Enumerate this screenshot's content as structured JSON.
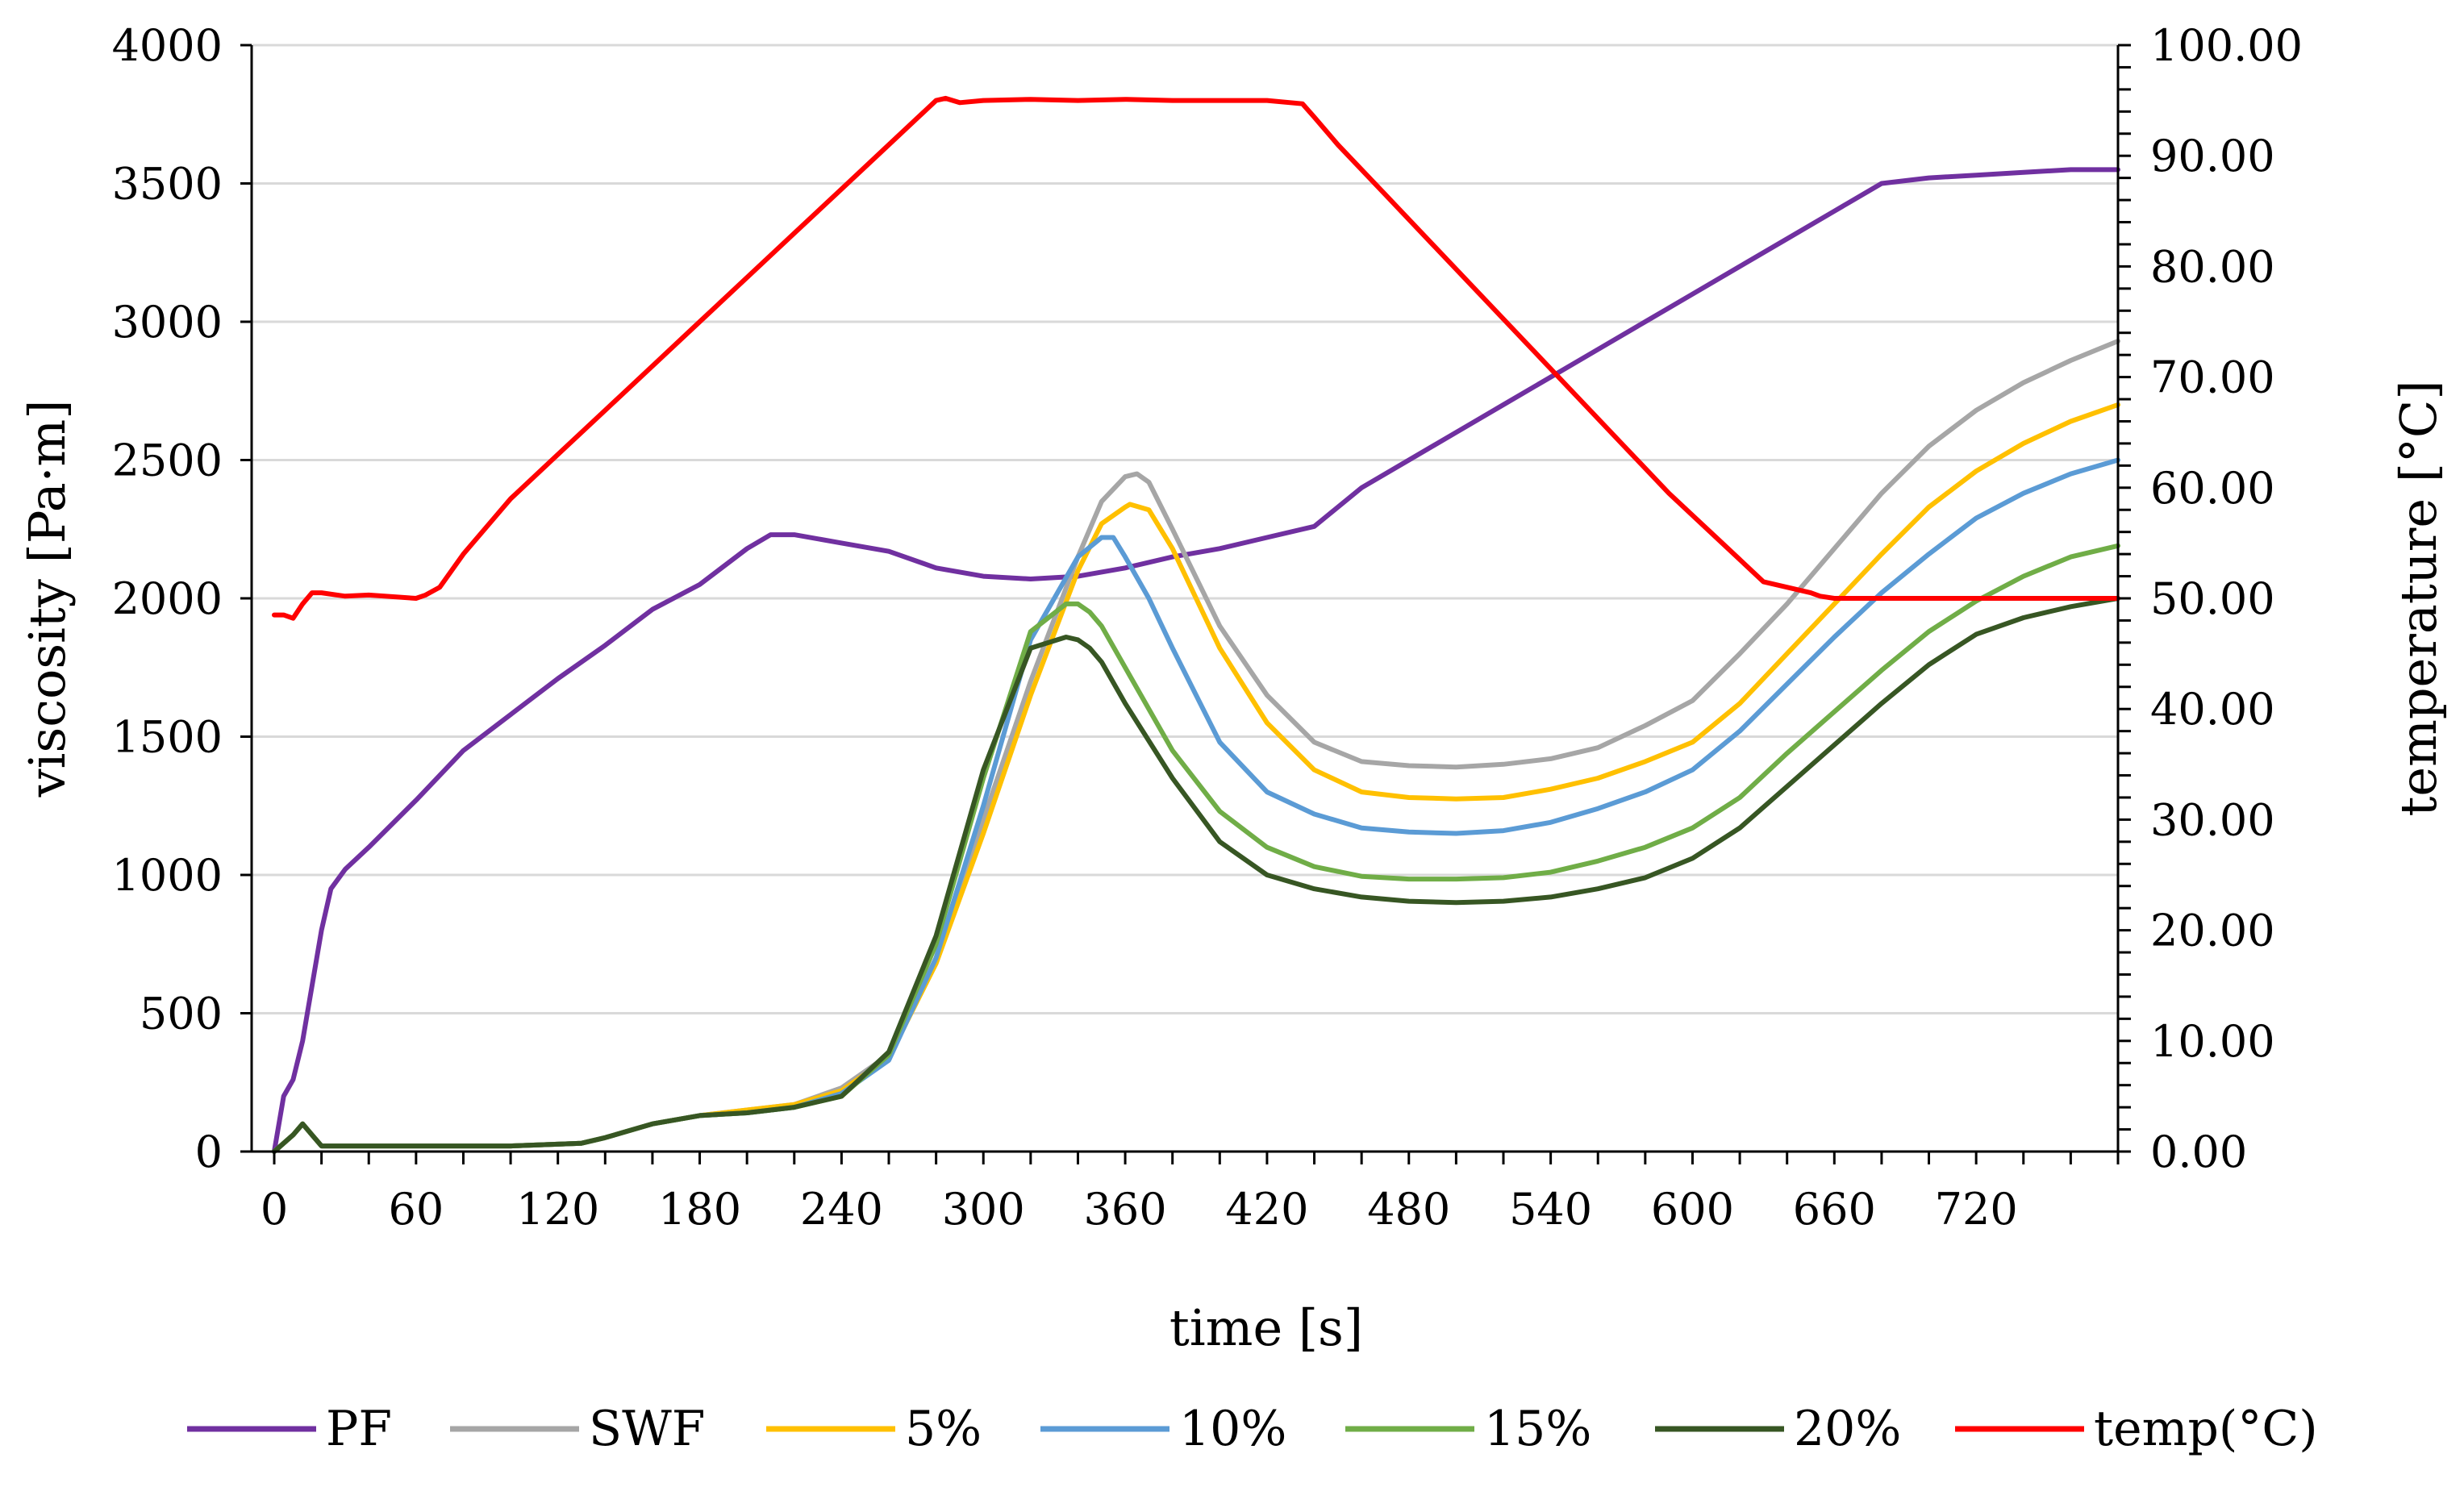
{
  "chart_data": {
    "type": "line",
    "xlabel": "time [s]",
    "ylabel": "viscosity [Pa·m]",
    "y2label": "temperature [°C]",
    "xlim": [
      0,
      780
    ],
    "ylim": [
      0,
      4000
    ],
    "y2lim": [
      0,
      100
    ],
    "x_ticks": [
      0,
      60,
      120,
      180,
      240,
      300,
      360,
      420,
      480,
      540,
      600,
      660,
      720
    ],
    "y_ticks": [
      0,
      500,
      1000,
      1500,
      2000,
      2500,
      3000,
      3500,
      4000
    ],
    "y2_ticks": [
      "0.00",
      "10.00",
      "20.00",
      "30.00",
      "40.00",
      "50.00",
      "60.00",
      "70.00",
      "80.00",
      "90.00",
      "100.00"
    ],
    "grid": "horizontal",
    "legend_position": "bottom",
    "series": [
      {
        "name": "PF",
        "color": "#7030a0",
        "axis": "left",
        "x": [
          0,
          4,
          8,
          12,
          16,
          20,
          24,
          30,
          40,
          60,
          80,
          100,
          120,
          140,
          160,
          180,
          200,
          210,
          220,
          240,
          260,
          280,
          300,
          320,
          340,
          360,
          380,
          400,
          420,
          440,
          460,
          480,
          500,
          520,
          540,
          560,
          580,
          600,
          620,
          640,
          660,
          680,
          700,
          720,
          740,
          760,
          780
        ],
        "y": [
          0,
          200,
          260,
          400,
          600,
          800,
          950,
          1020,
          1100,
          1270,
          1450,
          1580,
          1710,
          1830,
          1960,
          2050,
          2180,
          2230,
          2230,
          2200,
          2170,
          2110,
          2080,
          2070,
          2080,
          2110,
          2150,
          2180,
          2220,
          2260,
          2400,
          2500,
          2600,
          2700,
          2800,
          2900,
          3000,
          3100,
          3200,
          3300,
          3400,
          3500,
          3520,
          3530,
          3540,
          3550,
          3550
        ]
      },
      {
        "name": "SWF",
        "color": "#a6a6a6",
        "axis": "left",
        "x": [
          0,
          8,
          12,
          16,
          20,
          30,
          60,
          100,
          130,
          140,
          160,
          180,
          200,
          220,
          240,
          260,
          280,
          300,
          320,
          340,
          350,
          360,
          365,
          370,
          380,
          400,
          420,
          440,
          460,
          480,
          500,
          520,
          540,
          560,
          580,
          600,
          620,
          640,
          660,
          680,
          700,
          720,
          740,
          760,
          780
        ],
        "y": [
          0,
          60,
          100,
          60,
          20,
          20,
          20,
          20,
          30,
          50,
          100,
          130,
          150,
          170,
          230,
          350,
          700,
          1200,
          1700,
          2150,
          2350,
          2440,
          2450,
          2420,
          2250,
          1900,
          1650,
          1480,
          1410,
          1395,
          1390,
          1400,
          1420,
          1460,
          1540,
          1630,
          1800,
          1980,
          2180,
          2380,
          2550,
          2680,
          2780,
          2860,
          2930
        ]
      },
      {
        "name": "5%",
        "color": "#ffc000",
        "axis": "left",
        "x": [
          0,
          8,
          12,
          16,
          20,
          30,
          60,
          100,
          130,
          140,
          160,
          180,
          200,
          220,
          240,
          260,
          280,
          300,
          320,
          340,
          350,
          360,
          362,
          370,
          380,
          400,
          420,
          440,
          460,
          480,
          500,
          520,
          540,
          560,
          580,
          600,
          620,
          640,
          660,
          680,
          700,
          720,
          740,
          760,
          780
        ],
        "y": [
          0,
          60,
          100,
          60,
          20,
          20,
          20,
          20,
          30,
          50,
          100,
          130,
          150,
          170,
          220,
          340,
          680,
          1150,
          1650,
          2100,
          2270,
          2330,
          2340,
          2320,
          2180,
          1820,
          1550,
          1380,
          1300,
          1280,
          1275,
          1280,
          1310,
          1350,
          1410,
          1480,
          1620,
          1800,
          1980,
          2160,
          2330,
          2460,
          2560,
          2640,
          2700
        ]
      },
      {
        "name": "10%",
        "color": "#5b9bd5",
        "axis": "left",
        "x": [
          0,
          8,
          12,
          16,
          20,
          30,
          60,
          100,
          130,
          140,
          160,
          180,
          200,
          220,
          240,
          260,
          280,
          300,
          320,
          340,
          350,
          355,
          360,
          370,
          380,
          400,
          420,
          440,
          460,
          480,
          500,
          520,
          540,
          560,
          580,
          600,
          620,
          640,
          660,
          680,
          700,
          720,
          740,
          760,
          780
        ],
        "y": [
          0,
          60,
          100,
          60,
          20,
          20,
          20,
          20,
          30,
          50,
          100,
          130,
          140,
          160,
          210,
          330,
          700,
          1250,
          1850,
          2150,
          2220,
          2220,
          2150,
          2000,
          1820,
          1480,
          1300,
          1220,
          1170,
          1155,
          1150,
          1160,
          1190,
          1240,
          1300,
          1380,
          1520,
          1690,
          1860,
          2020,
          2160,
          2290,
          2380,
          2450,
          2500
        ]
      },
      {
        "name": "15%",
        "color": "#70ad47",
        "axis": "left",
        "x": [
          0,
          8,
          12,
          16,
          20,
          30,
          60,
          100,
          130,
          140,
          160,
          180,
          200,
          220,
          240,
          260,
          280,
          300,
          320,
          335,
          340,
          345,
          350,
          360,
          380,
          400,
          420,
          440,
          460,
          480,
          500,
          520,
          540,
          560,
          580,
          600,
          620,
          640,
          660,
          680,
          700,
          720,
          740,
          760,
          780
        ],
        "y": [
          0,
          60,
          100,
          60,
          20,
          20,
          20,
          20,
          30,
          50,
          100,
          130,
          140,
          160,
          200,
          350,
          750,
          1350,
          1880,
          1980,
          1980,
          1950,
          1900,
          1750,
          1450,
          1230,
          1100,
          1030,
          995,
          985,
          985,
          990,
          1010,
          1050,
          1100,
          1170,
          1280,
          1440,
          1590,
          1740,
          1880,
          1990,
          2080,
          2150,
          2190
        ]
      },
      {
        "name": "20%",
        "color": "#375623",
        "axis": "left",
        "x": [
          0,
          8,
          12,
          16,
          20,
          30,
          60,
          100,
          130,
          140,
          160,
          180,
          200,
          220,
          240,
          260,
          280,
          300,
          320,
          335,
          340,
          345,
          350,
          360,
          380,
          400,
          420,
          440,
          460,
          480,
          500,
          520,
          540,
          560,
          580,
          600,
          620,
          640,
          660,
          680,
          700,
          720,
          740,
          760,
          780
        ],
        "y": [
          0,
          60,
          100,
          60,
          20,
          20,
          20,
          20,
          30,
          50,
          100,
          130,
          140,
          160,
          200,
          360,
          780,
          1380,
          1820,
          1860,
          1850,
          1820,
          1770,
          1620,
          1350,
          1120,
          1000,
          950,
          920,
          905,
          900,
          905,
          920,
          950,
          990,
          1060,
          1170,
          1320,
          1470,
          1620,
          1760,
          1870,
          1930,
          1970,
          2000
        ]
      },
      {
        "name": "temp(°C)",
        "color": "#ff0000",
        "axis": "right",
        "x": [
          0,
          4,
          8,
          12,
          16,
          20,
          30,
          40,
          60,
          64,
          70,
          80,
          100,
          120,
          140,
          160,
          180,
          200,
          220,
          240,
          260,
          280,
          284,
          290,
          300,
          320,
          340,
          360,
          380,
          400,
          420,
          435,
          440,
          450,
          470,
          490,
          510,
          530,
          550,
          570,
          590,
          610,
          630,
          650,
          654,
          660,
          680,
          700,
          720,
          740,
          760,
          780
        ],
        "y": [
          48.5,
          48.5,
          48.2,
          49.5,
          50.5,
          50.5,
          50.2,
          50.3,
          50.0,
          50.3,
          51.0,
          54.0,
          59.0,
          63.0,
          67.0,
          71.0,
          75.0,
          79.0,
          83.0,
          87.0,
          91.0,
          95.0,
          95.2,
          94.8,
          95.0,
          95.1,
          95.0,
          95.1,
          95.0,
          95.0,
          95.0,
          94.7,
          93.5,
          91.0,
          86.5,
          82.0,
          77.5,
          73.0,
          68.5,
          64.0,
          59.5,
          55.5,
          51.5,
          50.5,
          50.2,
          50.0,
          50.0,
          50.0,
          50.0,
          50.0,
          50.0,
          50.0
        ]
      }
    ]
  }
}
